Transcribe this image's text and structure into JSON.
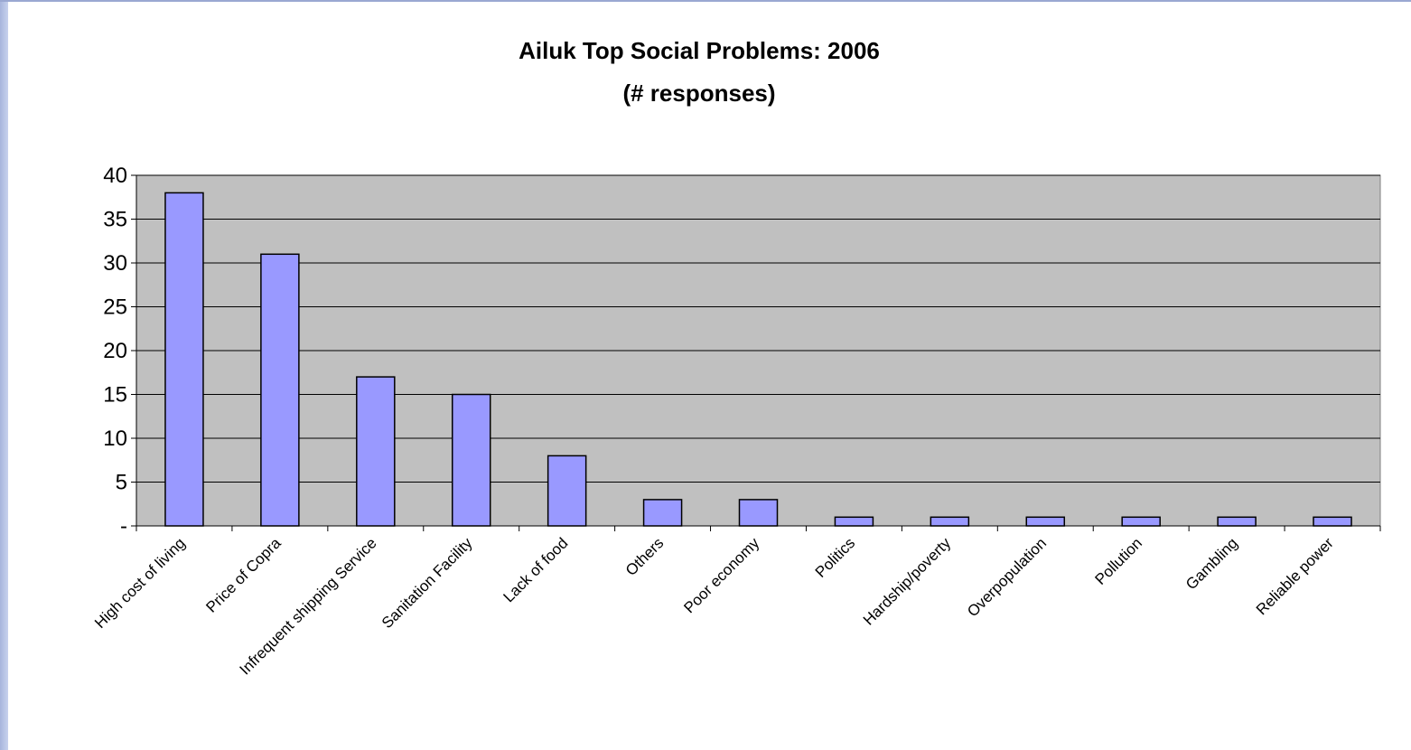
{
  "chart_data": {
    "type": "bar",
    "title": "Ailuk Top Social Problems: 2006",
    "subtitle": "(# responses)",
    "categories": [
      "High cost of living",
      "Price of Copra",
      "Infrequent shipping Service",
      "Sanitation Facility",
      "Lack of food",
      "Others",
      "Poor economy",
      "Politics",
      "Hardship/poverty",
      "Overpopulation",
      "Pollution",
      "Gambling",
      "Reliable power"
    ],
    "values": [
      38,
      31,
      17,
      15,
      8,
      3,
      3,
      1,
      1,
      1,
      1,
      1,
      1
    ],
    "ylim": [
      0,
      40
    ],
    "yticks": [
      0,
      5,
      10,
      15,
      20,
      25,
      30,
      35,
      40
    ],
    "ytick_labels": [
      "-",
      "5",
      "10",
      "15",
      "20",
      "25",
      "30",
      "35",
      "40"
    ],
    "xlabel": "",
    "ylabel": "",
    "grid": true,
    "colors": {
      "bar": "#9999ff",
      "plot_bg": "#c0c0c0",
      "frame_left": "#b4c0e4"
    }
  }
}
